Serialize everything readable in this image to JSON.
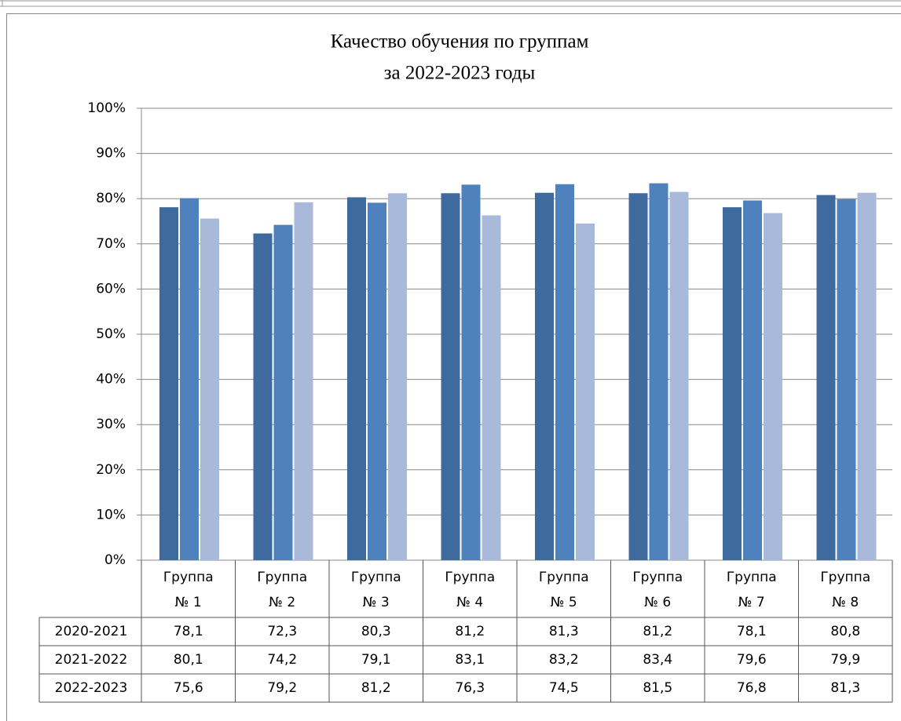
{
  "chart_data": {
    "type": "bar",
    "title": [
      "Качество обучения по группам",
      "за 2022-2023 годы"
    ],
    "categories": [
      "Группа № 1",
      "Группа № 2",
      "Группа № 3",
      "Группа № 4",
      "Группа № 5",
      "Группа № 6",
      "Группа № 7",
      "Группа № 8"
    ],
    "series": [
      {
        "name": "2020-2021",
        "color": "#3f6a9e",
        "values": [
          78.1,
          72.3,
          80.3,
          81.2,
          81.3,
          81.2,
          78.1,
          80.8
        ],
        "value_labels": [
          "78,1",
          "72,3",
          "80,3",
          "81,2",
          "81,3",
          "81,2",
          "78,1",
          "80,8"
        ]
      },
      {
        "name": "2021-2022",
        "color": "#4f81bd",
        "values": [
          80.1,
          74.2,
          79.1,
          83.1,
          83.2,
          83.4,
          79.6,
          79.9
        ],
        "value_labels": [
          "80,1",
          "74,2",
          "79,1",
          "83,1",
          "83,2",
          "83,4",
          "79,6",
          "79,9"
        ]
      },
      {
        "name": "2022-2023",
        "color": "#a9b9d9",
        "values": [
          75.6,
          79.2,
          81.2,
          76.3,
          74.5,
          81.5,
          76.8,
          81.3
        ],
        "value_labels": [
          "75,6",
          "79,2",
          "81,2",
          "76,3",
          "74,5",
          "81,5",
          "76,8",
          "81,3"
        ]
      }
    ],
    "ylim": [
      0,
      100
    ],
    "yticks": [
      {
        "value": 0,
        "label": "0%"
      },
      {
        "value": 10,
        "label": "10%"
      },
      {
        "value": 20,
        "label": "20%"
      },
      {
        "value": 30,
        "label": "30%"
      },
      {
        "value": 40,
        "label": "40%"
      },
      {
        "value": 50,
        "label": "50%"
      },
      {
        "value": 60,
        "label": "60%"
      },
      {
        "value": 70,
        "label": "70%"
      },
      {
        "value": 80,
        "label": "80%"
      },
      {
        "value": 90,
        "label": "90%"
      },
      {
        "value": 100,
        "label": "100%"
      }
    ],
    "grid": true
  }
}
